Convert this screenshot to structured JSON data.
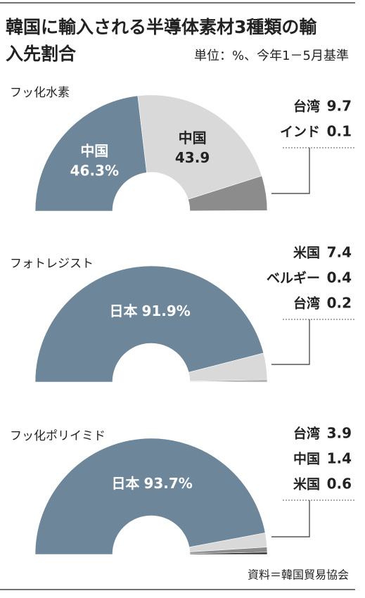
{
  "title": "韓国に輸入される半導体素材3種類の輸入先割合",
  "subtitle": "単位：%、今年1－5月基準",
  "source": "資料＝韓国貿易協会",
  "chart_data": [
    {
      "type": "half-donut",
      "title": "フッ化水素",
      "categories": [
        "中国",
        "中国",
        "台湾",
        "インド"
      ],
      "values": [
        46.3,
        43.9,
        9.7,
        0.1
      ],
      "value_labels": [
        "46.3%",
        "43.9",
        "9.7",
        "0.1"
      ],
      "colors": [
        "#6e8699",
        "#d9d9d9",
        "#8c8c8c",
        "#333333"
      ]
    },
    {
      "type": "half-donut",
      "title": "フォトレジスト",
      "categories": [
        "日本",
        "米国",
        "ベルギー",
        "台湾"
      ],
      "values": [
        91.9,
        7.4,
        0.4,
        0.2
      ],
      "value_labels": [
        "91.9%",
        "7.4",
        "0.4",
        "0.2"
      ],
      "colors": [
        "#6e8699",
        "#d9d9d9",
        "#8c8c8c",
        "#333333"
      ]
    },
    {
      "type": "half-donut",
      "title": "フッ化ポリイミド",
      "categories": [
        "日本",
        "台湾",
        "中国",
        "米国"
      ],
      "values": [
        93.7,
        3.9,
        1.4,
        0.6
      ],
      "value_labels": [
        "93.7%",
        "3.9",
        "1.4",
        "0.6"
      ],
      "colors": [
        "#6e8699",
        "#d9d9d9",
        "#8c8c8c",
        "#333333"
      ]
    }
  ]
}
